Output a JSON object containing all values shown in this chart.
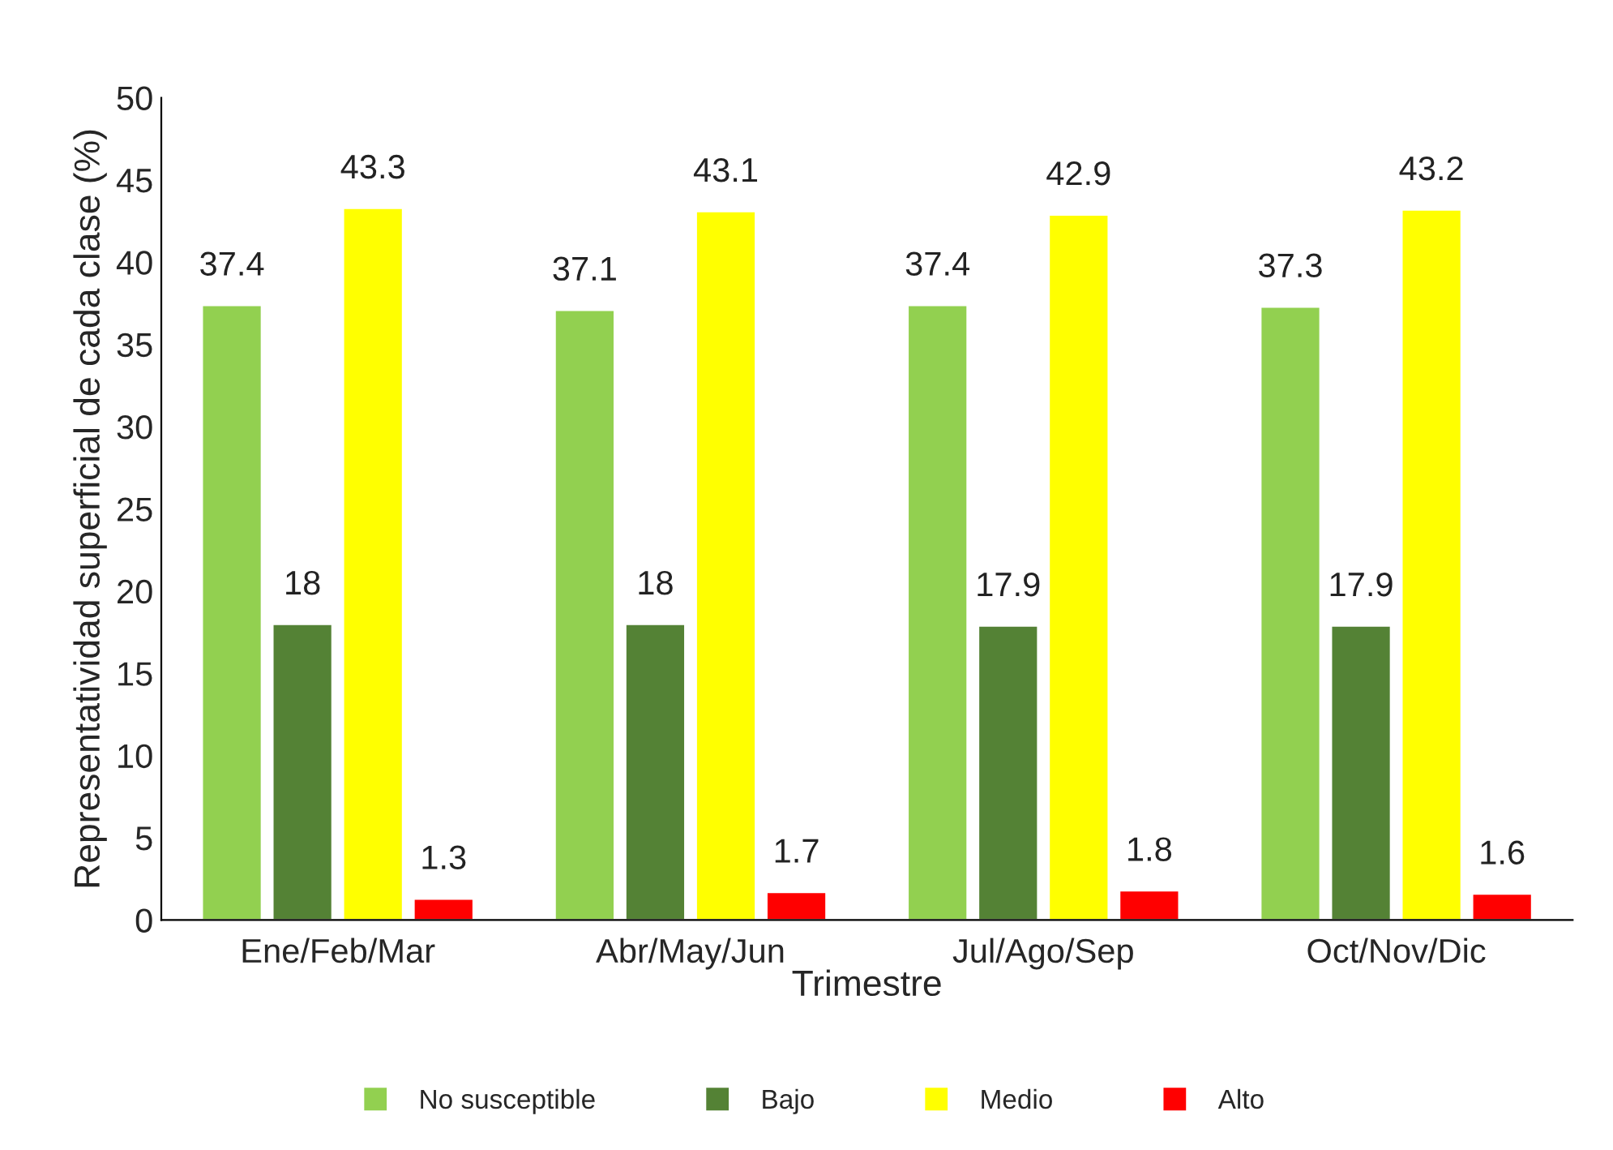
{
  "chart_data": {
    "type": "bar",
    "xlabel": "Trimestre",
    "ylabel": "Representatividad superficial de cada clase (%)",
    "categories": [
      "Ene/Feb/Mar",
      "Abr/May/Jun",
      "Jul/Ago/Sep",
      "Oct/Nov/Dic"
    ],
    "series": [
      {
        "name": "No susceptible",
        "color": "#92d050",
        "values": [
          37.4,
          37.1,
          37.4,
          37.3
        ]
      },
      {
        "name": "Bajo",
        "color": "#548235",
        "values": [
          18,
          18,
          17.9,
          17.9
        ]
      },
      {
        "name": "Medio",
        "color": "#ffff00",
        "values": [
          43.3,
          43.1,
          42.9,
          43.2
        ]
      },
      {
        "name": "Alto",
        "color": "#ff0000",
        "values": [
          1.3,
          1.7,
          1.8,
          1.6
        ]
      }
    ],
    "ylim": [
      0,
      50
    ],
    "yticks": [
      0,
      5,
      10,
      15,
      20,
      25,
      30,
      35,
      40,
      45,
      50
    ],
    "data_labels": true,
    "grid": false,
    "legend": "bottom"
  }
}
